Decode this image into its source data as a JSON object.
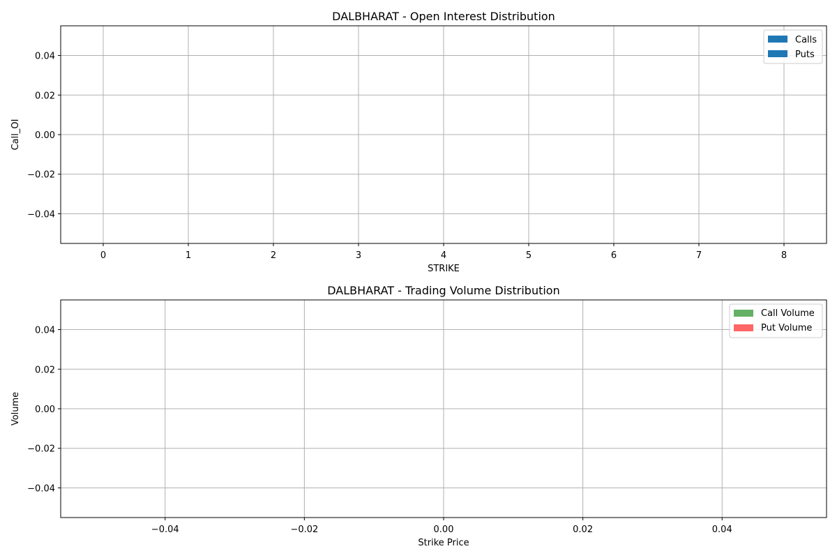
{
  "chart_data": [
    {
      "type": "bar",
      "title": "DALBHARAT - Open Interest Distribution",
      "xlabel": "STRIKE",
      "ylabel": "Call_OI",
      "x_ticks": [
        "0",
        "1",
        "2",
        "3",
        "4",
        "5",
        "6",
        "7",
        "8"
      ],
      "y_ticks": [
        "−0.04",
        "−0.02",
        "0.00",
        "0.02",
        "0.04"
      ],
      "x_tick_values": [
        0,
        1,
        2,
        3,
        4,
        5,
        6,
        7,
        8
      ],
      "y_tick_values": [
        -0.04,
        -0.02,
        0.0,
        0.02,
        0.04
      ],
      "xlim": [
        -0.5,
        8.5
      ],
      "ylim": [
        -0.055,
        0.055
      ],
      "grid": true,
      "legend_position": "top-right",
      "series": [
        {
          "name": "Calls",
          "color": "#1f77b4",
          "values": []
        },
        {
          "name": "Puts",
          "color": "#1f77b4",
          "values": []
        }
      ]
    },
    {
      "type": "bar",
      "title": "DALBHARAT - Trading Volume Distribution",
      "xlabel": "Strike Price",
      "ylabel": "Volume",
      "x_ticks": [
        "−0.04",
        "−0.02",
        "0.00",
        "0.02",
        "0.04"
      ],
      "y_ticks": [
        "−0.04",
        "−0.02",
        "0.00",
        "0.02",
        "0.04"
      ],
      "x_tick_values": [
        -0.04,
        -0.02,
        0.0,
        0.02,
        0.04
      ],
      "y_tick_values": [
        -0.04,
        -0.02,
        0.0,
        0.02,
        0.04
      ],
      "xlim": [
        -0.055,
        0.055
      ],
      "ylim": [
        -0.055,
        0.055
      ],
      "grid": true,
      "legend_position": "top-right",
      "series": [
        {
          "name": "Call Volume",
          "color": "#64b064",
          "values": []
        },
        {
          "name": "Put Volume",
          "color": "#ff6666",
          "values": []
        }
      ]
    }
  ]
}
